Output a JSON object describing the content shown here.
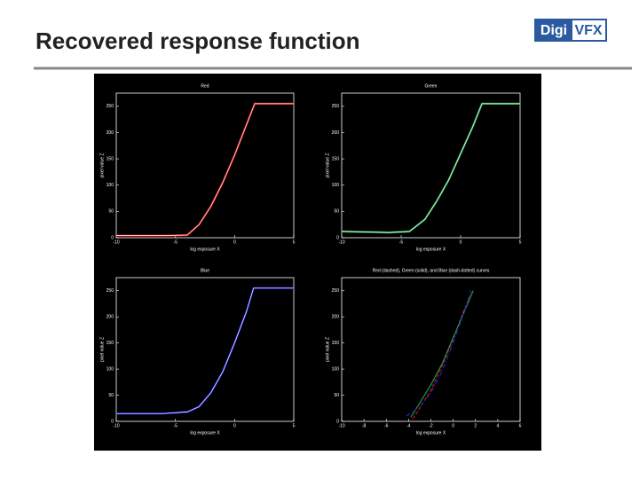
{
  "slide": {
    "title": "Recovered response function",
    "logo_left": "Digi",
    "logo_right": "VFX"
  },
  "chart_data": [
    {
      "type": "line",
      "title": "Red",
      "xlabel": "log exposure X",
      "ylabel": "pixel value Z",
      "xlim": [
        -10,
        5
      ],
      "ylim": [
        0,
        275
      ],
      "xticks": [
        -10,
        -5,
        0,
        5
      ],
      "yticks": [
        0,
        50,
        100,
        150,
        200,
        250
      ],
      "series": [
        {
          "color": "#d01010",
          "x": [
            -10,
            -8,
            -6,
            -4,
            -3,
            -2,
            -1,
            0,
            1,
            1.7,
            3,
            5
          ],
          "values": [
            4,
            4,
            4,
            5,
            25,
            60,
            105,
            157,
            215,
            255,
            255,
            255
          ]
        }
      ]
    },
    {
      "type": "line",
      "title": "Green",
      "xlabel": "log exposure X",
      "ylabel": "pixel value Z",
      "xlim": [
        -10,
        5
      ],
      "ylim": [
        0,
        275
      ],
      "xticks": [
        -10,
        -5,
        0,
        5
      ],
      "yticks": [
        0,
        50,
        100,
        150,
        200,
        250
      ],
      "series": [
        {
          "color": "#1a9a40",
          "x": [
            -10,
            -6,
            -4.3,
            -3,
            -2,
            -1,
            0,
            1,
            1.8,
            5
          ],
          "values": [
            12,
            10,
            12,
            35,
            70,
            110,
            160,
            210,
            255,
            255
          ]
        }
      ]
    },
    {
      "type": "line",
      "title": "Blue",
      "xlabel": "log exposure X",
      "ylabel": "pixel value Z",
      "xlim": [
        -10,
        5
      ],
      "ylim": [
        0,
        275
      ],
      "xticks": [
        -10,
        -5,
        0,
        5
      ],
      "yticks": [
        0,
        50,
        100,
        150,
        200,
        250
      ],
      "series": [
        {
          "color": "#2020d0",
          "x": [
            -10,
            -6,
            -4,
            -3,
            -2,
            -1,
            0,
            1,
            1.6,
            5
          ],
          "values": [
            15,
            15,
            18,
            28,
            55,
            95,
            150,
            210,
            255,
            255
          ]
        }
      ]
    },
    {
      "type": "line",
      "title": "Red (dashed), Green (solid), and Blue (dash-dotted) curves",
      "xlabel": "log exposure X",
      "ylabel": "pixel value Z",
      "xlim": [
        -10,
        6
      ],
      "ylim": [
        0,
        275
      ],
      "xticks": [
        -10,
        -8,
        -6,
        -4,
        -2,
        0,
        2,
        4,
        6
      ],
      "yticks": [
        0,
        50,
        100,
        150,
        200,
        250
      ],
      "series": [
        {
          "color": "#d01010",
          "x": [
            -3.6,
            -3,
            -2,
            -1,
            0,
            1,
            1.8
          ],
          "values": [
            5,
            25,
            60,
            105,
            157,
            215,
            250
          ]
        },
        {
          "color": "#1a9a40",
          "x": [
            -3.8,
            -3,
            -2,
            -1,
            0,
            1,
            1.8
          ],
          "values": [
            8,
            35,
            70,
            110,
            160,
            210,
            250
          ]
        },
        {
          "color": "#2020d0",
          "x": [
            -4.2,
            -3,
            -2,
            -1,
            0,
            1,
            1.6
          ],
          "values": [
            10,
            28,
            55,
            95,
            150,
            210,
            250
          ]
        }
      ]
    }
  ]
}
